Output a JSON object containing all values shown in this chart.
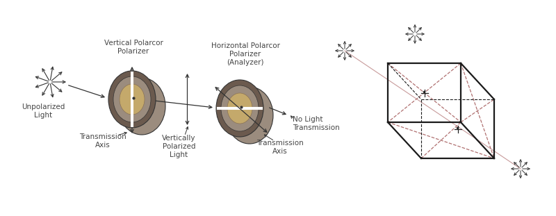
{
  "bg_color": "#ffffff",
  "line_color": "#333333",
  "disk_outer_color": "#9b8c7e",
  "disk_inner_color": "#c4a96b",
  "disk_dark_color": "#6b5a4e",
  "arrow_color": "#333333",
  "dashed_color": "#b07070",
  "font_size": 7.5,
  "labels": {
    "unpolarized": "Unpolarized\nLight",
    "trans_axis1": "Transmission\nAxis",
    "vert_pol_light": "Vertically\nPolarized\nLight",
    "trans_axis2": "Transmission\nAxis",
    "no_light": "No Light\nTransmission",
    "vert_polarizer": "Vertical Polarcor\nPolarizer",
    "horiz_polarizer": "Horizontal Polarcor\nPolarizer\n(Analyzer)"
  }
}
